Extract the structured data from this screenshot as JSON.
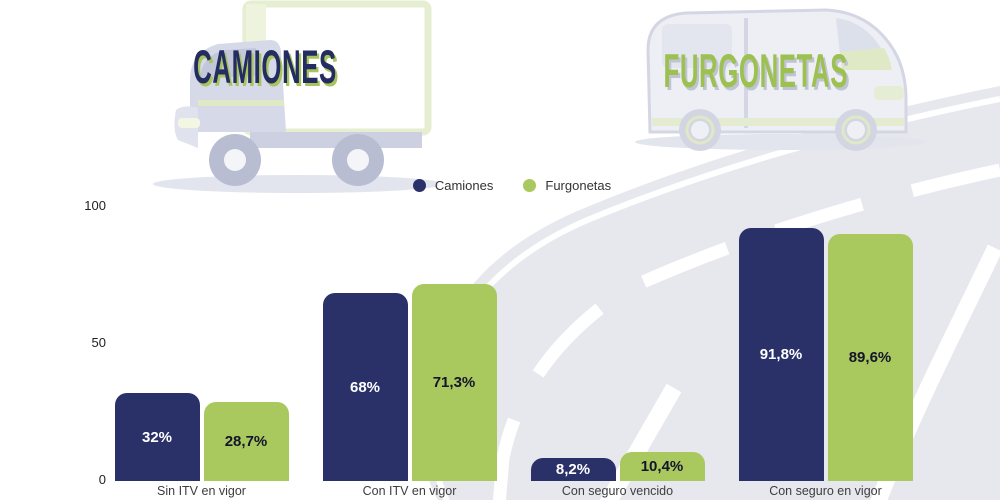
{
  "header": {
    "left_title": "CAMIONES",
    "right_title": "FURGONETAS",
    "left_icon": "box-truck-illustration",
    "right_icon": "van-illustration",
    "left_title_color": "#242d61",
    "left_title_shadow_color": "#a9c45c",
    "right_title_color": "#9cc151",
    "right_title_shadow_color": "#c0c3d2"
  },
  "background": {
    "road_graphic": "road-curve-with-lane-markings",
    "road_color": "#e7e7ee",
    "marking_color": "#ffffff"
  },
  "legend": {
    "items": [
      {
        "label": "Camiones",
        "color": "#2a3169"
      },
      {
        "label": "Furgonetas",
        "color": "#a9c85e"
      }
    ]
  },
  "chart_data": {
    "type": "bar",
    "title": "",
    "xlabel": "",
    "ylabel": "",
    "categories": [
      "Sin ITV en vigor",
      "Con ITV en vigor",
      "Con seguro vencido",
      "Con seguro en vigor"
    ],
    "series": [
      {
        "name": "Camiones",
        "color": "#2a3169",
        "label_color": "#ffffff",
        "values": [
          32,
          68,
          8.2,
          91.8
        ],
        "labels": [
          "32%",
          "68%",
          "8,2%",
          "91,8%"
        ]
      },
      {
        "name": "Furgonetas",
        "color": "#a9c85e",
        "label_color": "#14142b",
        "values": [
          28.7,
          71.3,
          10.4,
          89.6
        ],
        "labels": [
          "28,7%",
          "71,3%",
          "10,4%",
          "89,6%"
        ]
      }
    ],
    "ylim": [
      0,
      100
    ],
    "yticks": [
      {
        "value": 100,
        "label": "100"
      },
      {
        "value": 50,
        "label": "50"
      },
      {
        "value": 0,
        "label": "0"
      }
    ],
    "grid": false,
    "legend_position": "top-center"
  }
}
